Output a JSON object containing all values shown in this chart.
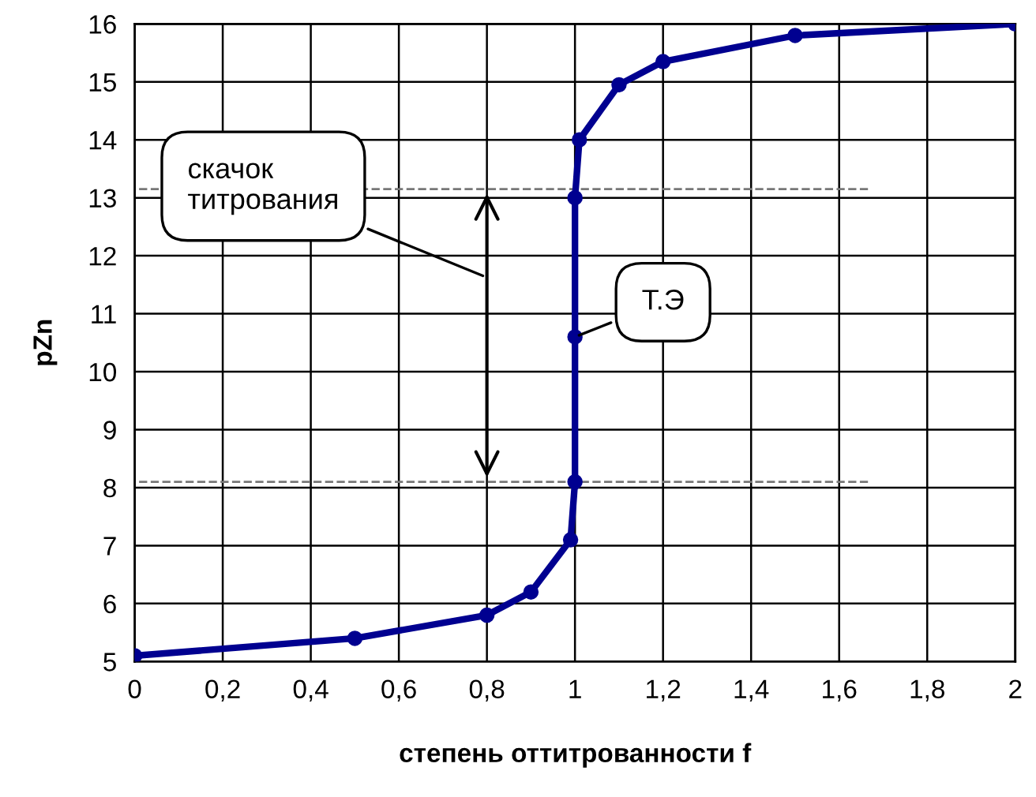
{
  "chart_data": {
    "type": "line",
    "xlabel": "степень оттитрованности f",
    "ylabel": "pZn",
    "x": [
      0,
      0.5,
      0.8,
      0.9,
      0.99,
      1.0,
      1.0,
      1.0,
      1.01,
      1.1,
      1.2,
      1.5,
      2
    ],
    "series": [
      {
        "color": "#000090",
        "values": [
          5.1,
          5.4,
          5.8,
          6.2,
          7.1,
          8.1,
          10.6,
          13.0,
          14.0,
          14.95,
          15.35,
          15.8,
          16
        ]
      }
    ],
    "xlim": [
      0,
      2
    ],
    "xticks": [
      0,
      {
        "value": 0.2,
        "label": "0,2"
      },
      {
        "value": 0.4,
        "label": "0,4"
      },
      {
        "value": 0.6,
        "label": "0,6"
      },
      {
        "value": 0.8,
        "label": "0,8"
      },
      1,
      {
        "value": 1.2,
        "label": "1,2"
      },
      {
        "value": 1.4,
        "label": "1,4"
      },
      {
        "value": 1.6,
        "label": "1,6"
      },
      {
        "value": 1.8,
        "label": "1,8"
      },
      2
    ],
    "ylim": [
      5,
      16
    ],
    "yticks": [
      5,
      6,
      7,
      8,
      9,
      10,
      11,
      12,
      13,
      14,
      15,
      16
    ],
    "grid": true,
    "marker": "circle",
    "line_style": "solid",
    "ref_lines": [
      {
        "axis": "y",
        "value": 13.15,
        "color": "#777777",
        "line_style": "dashed"
      },
      {
        "axis": "y",
        "value": 8.1,
        "color": "#777777",
        "line_style": "dashed"
      }
    ],
    "annotations": [
      "скачок\nтитрования",
      {
        "text": "Т.Э",
        "x": 1.0,
        "y": 10.6
      }
    ]
  }
}
